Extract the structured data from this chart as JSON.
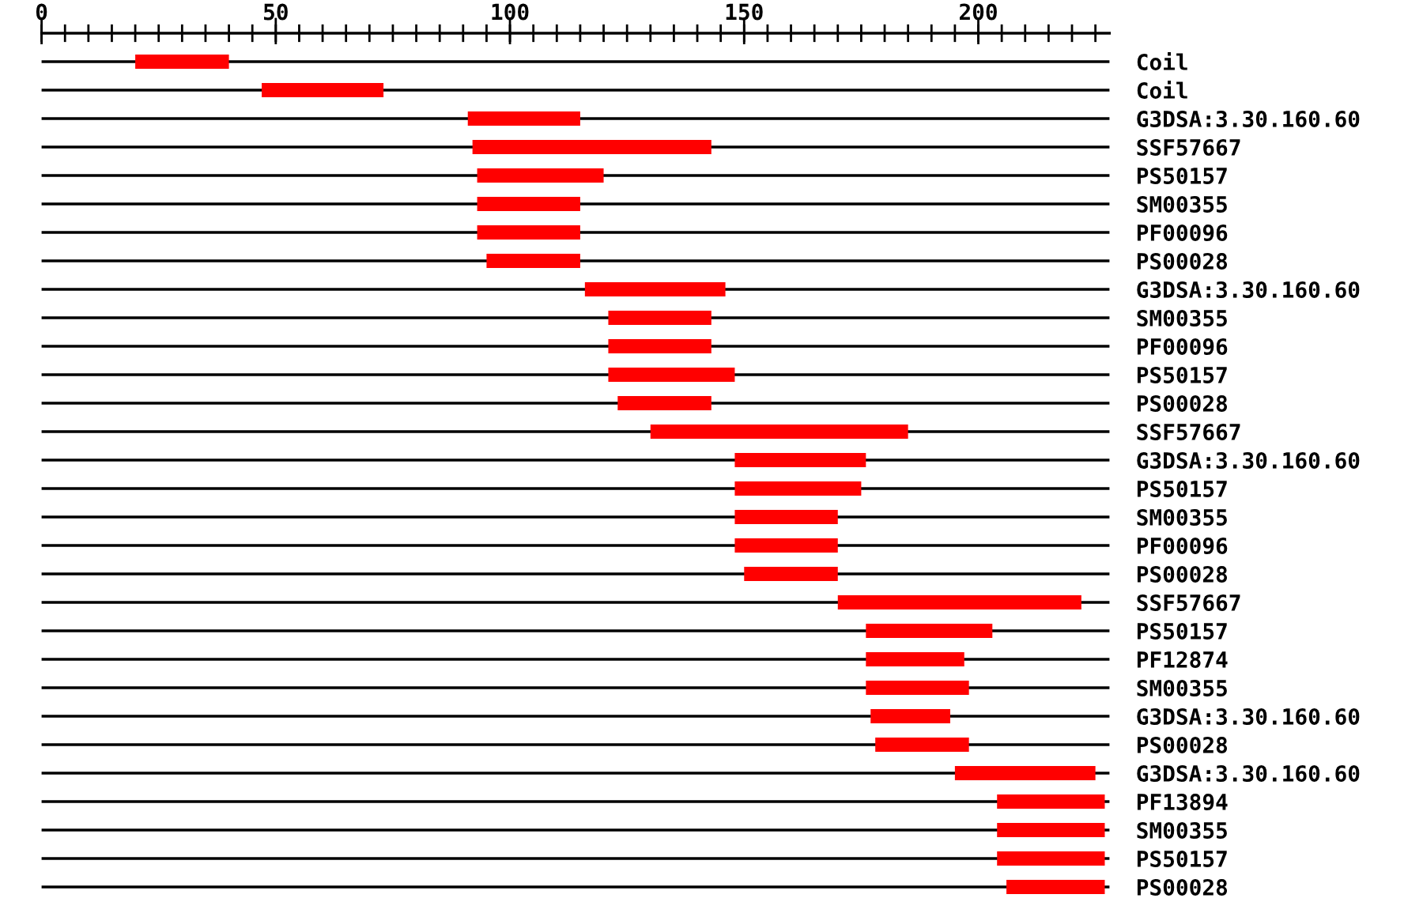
{
  "chart_data": {
    "type": "bar",
    "orientation": "horizontal",
    "color": "#ff0000",
    "grid": "y",
    "categories": [
      "Coil",
      "Coil",
      "G3DSA:3.30.160.60",
      "SSF57667",
      "PS50157",
      "SM00355",
      "PF00096",
      "PS00028",
      "G3DSA:3.30.160.60",
      "SM00355",
      "PF00096",
      "PS50157",
      "PS00028",
      "SSF57667",
      "G3DSA:3.30.160.60",
      "PS50157",
      "SM00355",
      "PF00096",
      "PS00028",
      "SSF57667",
      "PS50157",
      "PF12874",
      "SM00355",
      "G3DSA:3.30.160.60",
      "PS00028",
      "G3DSA:3.30.160.60",
      "PF13894",
      "SM00355",
      "PS50157",
      "PS00028"
    ],
    "base": [
      20,
      47,
      91,
      92,
      93,
      93,
      93,
      95,
      116,
      121,
      121,
      121,
      123,
      130,
      148,
      148,
      148,
      148,
      150,
      170,
      176,
      176,
      176,
      177,
      178,
      195,
      204,
      204,
      204,
      206
    ],
    "values": [
      20,
      26,
      24,
      51,
      27,
      22,
      22,
      20,
      30,
      22,
      22,
      27,
      20,
      55,
      28,
      27,
      22,
      22,
      20,
      52,
      27,
      21,
      22,
      17,
      20,
      30,
      23,
      23,
      23,
      21
    ],
    "xlim": [
      0,
      228
    ],
    "xticks": [
      0,
      {
        "value": 5,
        "label": null
      },
      {
        "value": 10,
        "label": null
      },
      {
        "value": 15,
        "label": null
      },
      {
        "value": 20,
        "label": null
      },
      {
        "value": 25,
        "label": null
      },
      {
        "value": 30,
        "label": null
      },
      {
        "value": 35,
        "label": null
      },
      {
        "value": 40,
        "label": null
      },
      {
        "value": 45,
        "label": null
      },
      50,
      {
        "value": 55,
        "label": null
      },
      {
        "value": 60,
        "label": null
      },
      {
        "value": 65,
        "label": null
      },
      {
        "value": 70,
        "label": null
      },
      {
        "value": 75,
        "label": null
      },
      {
        "value": 80,
        "label": null
      },
      {
        "value": 85,
        "label": null
      },
      {
        "value": 90,
        "label": null
      },
      {
        "value": 95,
        "label": null
      },
      100,
      {
        "value": 105,
        "label": null
      },
      {
        "value": 110,
        "label": null
      },
      {
        "value": 115,
        "label": null
      },
      {
        "value": 120,
        "label": null
      },
      {
        "value": 125,
        "label": null
      },
      {
        "value": 130,
        "label": null
      },
      {
        "value": 135,
        "label": null
      },
      {
        "value": 140,
        "label": null
      },
      {
        "value": 145,
        "label": null
      },
      150,
      {
        "value": 155,
        "label": null
      },
      {
        "value": 160,
        "label": null
      },
      {
        "value": 165,
        "label": null
      },
      {
        "value": 170,
        "label": null
      },
      {
        "value": 175,
        "label": null
      },
      {
        "value": 180,
        "label": null
      },
      {
        "value": 185,
        "label": null
      },
      {
        "value": 190,
        "label": null
      },
      {
        "value": 195,
        "label": null
      },
      200,
      {
        "value": 205,
        "label": null
      },
      {
        "value": 210,
        "label": null
      },
      {
        "value": 215,
        "label": null
      },
      {
        "value": 220,
        "label": null
      },
      {
        "value": 225,
        "label": null
      }
    ]
  }
}
